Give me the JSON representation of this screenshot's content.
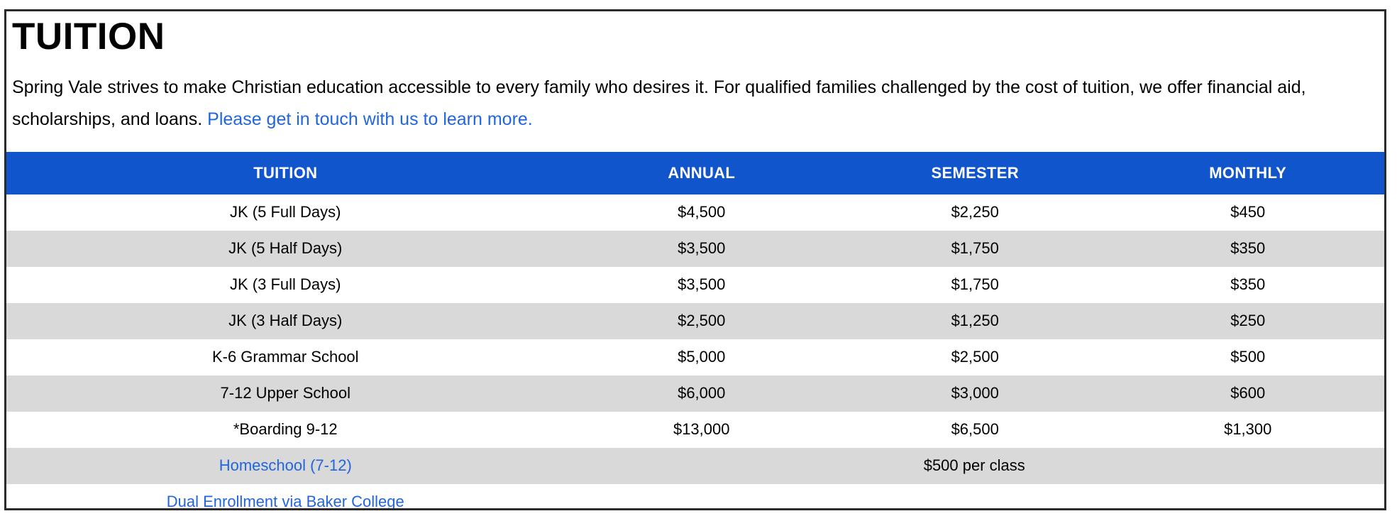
{
  "page": {
    "title": "TUITION",
    "intro_text": "Spring Vale strives to make Christian education accessible to every family who desires it. For qualified families challenged by the cost of tuition, we offer financial aid, scholarships, and loans. ",
    "intro_link_label": "Please get in touch with us to learn more."
  },
  "colors": {
    "header_bg": "#1155CC",
    "alt_row_bg": "#D9D9D9",
    "link": "#2166DD",
    "text": "#000000",
    "frame_border": "#2B2B2B"
  },
  "table": {
    "headers": [
      "TUITION",
      "ANNUAL",
      "SEMESTER",
      "MONTHLY"
    ],
    "rows": [
      {
        "label": "JK (5 Full Days)",
        "is_link": false,
        "annual": "$4,500",
        "semester": "$2,250",
        "monthly": "$450"
      },
      {
        "label": "JK (5 Half Days)",
        "is_link": false,
        "annual": "$3,500",
        "semester": "$1,750",
        "monthly": "$350"
      },
      {
        "label": "JK (3 Full Days)",
        "is_link": false,
        "annual": "$3,500",
        "semester": "$1,750",
        "monthly": "$350"
      },
      {
        "label": "JK (3 Half Days)",
        "is_link": false,
        "annual": "$2,500",
        "semester": "$1,250",
        "monthly": "$250"
      },
      {
        "label": "K-6 Grammar School",
        "is_link": false,
        "annual": "$5,000",
        "semester": "$2,500",
        "monthly": "$500"
      },
      {
        "label": "7-12 Upper School",
        "is_link": false,
        "annual": "$6,000",
        "semester": "$3,000",
        "monthly": "$600"
      },
      {
        "label": "*Boarding 9-12",
        "is_link": false,
        "annual": "$13,000",
        "semester": "$6,500",
        "monthly": "$1,300"
      },
      {
        "label": "Homeschool (7-12)",
        "is_link": true,
        "span_value": "$500 per class"
      },
      {
        "label": "Dual Enrollment via Baker College",
        "is_link": true,
        "span_value": ""
      }
    ]
  }
}
